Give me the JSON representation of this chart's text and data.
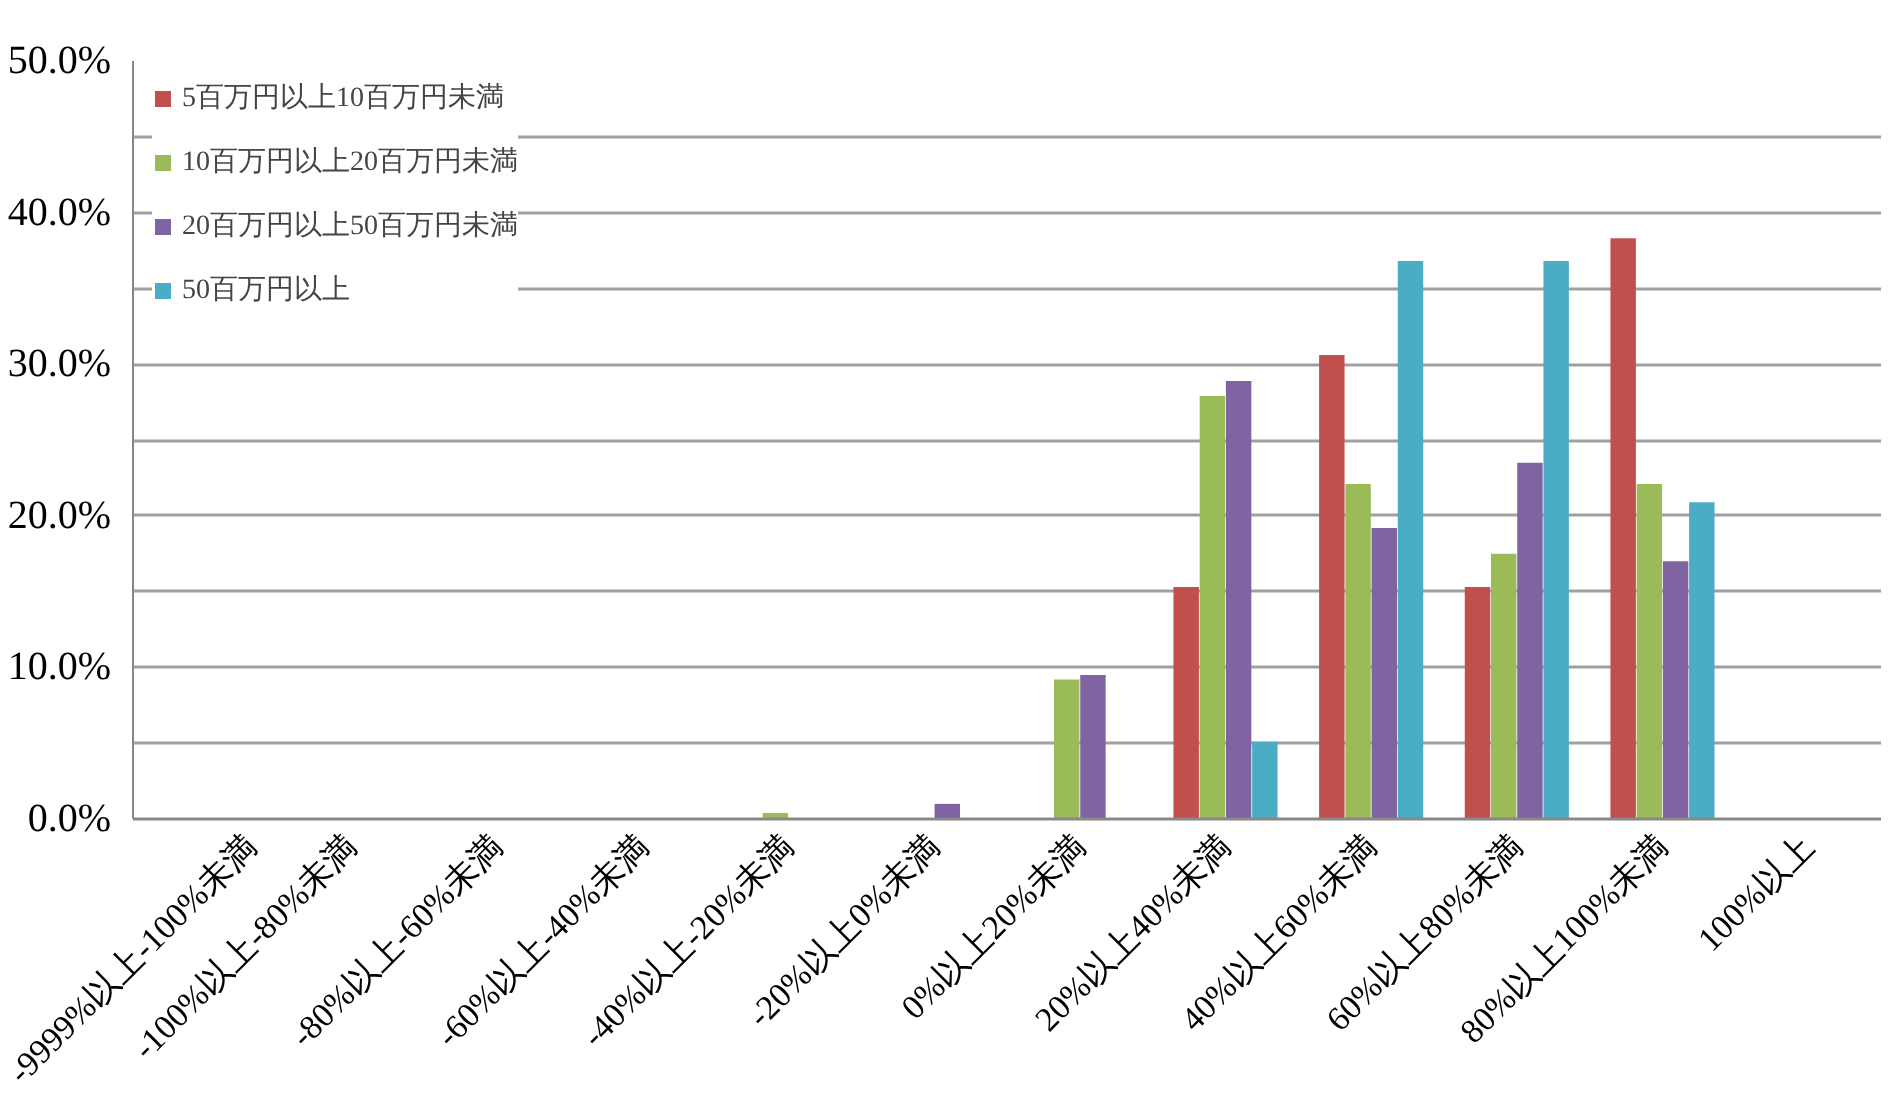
{
  "chart_data": {
    "type": "bar",
    "categories": [
      "-9999%以上-100%未満",
      "-100%以上-80%未満",
      "-80%以上-60%未満",
      "-60%以上-40%未満",
      "-40%以上-20%未満",
      "-20%以上0%未満",
      "0%以上20%未満",
      "20%以上40%未満",
      "40%以上60%未満",
      "60%以上80%未満",
      "80%以上100%未満",
      "100%以上"
    ],
    "series": [
      {
        "name": "5百万円以上10百万円未満",
        "color": "#c0504d",
        "values": [
          0,
          0,
          0,
          0,
          0,
          0,
          0,
          15.3,
          30.6,
          15.3,
          38.3,
          0
        ]
      },
      {
        "name": "10百万円以上20百万円未満",
        "color": "#9bbb59",
        "values": [
          0,
          0,
          0,
          0,
          0.4,
          0,
          9.2,
          27.9,
          22.1,
          17.5,
          22.1,
          0
        ]
      },
      {
        "name": "20百万円以上50百万円未満",
        "color": "#8064a2",
        "values": [
          0,
          0,
          0,
          0,
          0,
          1.0,
          9.5,
          28.9,
          19.2,
          23.5,
          17.0,
          0
        ]
      },
      {
        "name": "50百万円以上",
        "color": "#4bacc6",
        "values": [
          0,
          0,
          0,
          0,
          0,
          0,
          0,
          5.1,
          36.8,
          36.8,
          20.9,
          0
        ]
      }
    ],
    "ylim": [
      0,
      50
    ],
    "yticks": [
      {
        "value": 0,
        "label": "0.0%"
      },
      {
        "value": 5,
        "label": null
      },
      {
        "value": 10,
        "label": "10.0%"
      },
      {
        "value": 15,
        "label": null
      },
      {
        "value": 20,
        "label": "20.0%"
      },
      {
        "value": 25,
        "label": null
      },
      {
        "value": 30,
        "label": "30.0%"
      },
      {
        "value": 35,
        "label": null
      },
      {
        "value": 40,
        "label": "40.0%"
      },
      {
        "value": 45,
        "label": null
      },
      {
        "value": 50,
        "label": "50.0%"
      }
    ],
    "grid": "y",
    "legend": "top left"
  }
}
